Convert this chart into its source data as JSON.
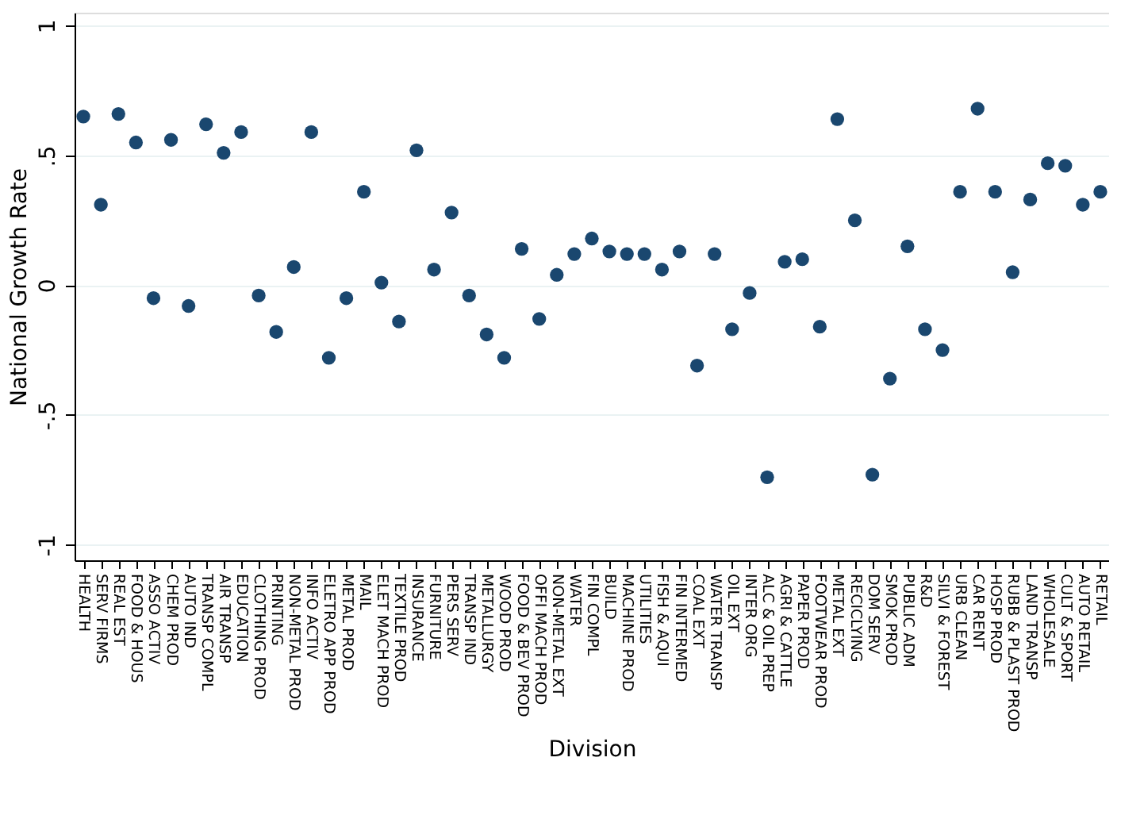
{
  "chart_data": {
    "type": "scatter",
    "xlabel": "Division",
    "ylabel": "National Growth Rate",
    "categories": [
      "HEALTH",
      "SERV FIRMS",
      "REAL EST",
      "FOOD & HOUS",
      "ASSO ACTIV",
      "CHEM PROD",
      "AUTO IND",
      "TRANSP COMPL",
      "AIR TRANSP",
      "EDUCATION",
      "CLOTHING PROD",
      "PRINTING",
      "NON-METAL PROD",
      "INFO ACTIV",
      "ELETRO APP PROD",
      "METAL PROD",
      "MAIL",
      "ELET MACH PROD",
      "TEXTILE PROD",
      "INSURANCE",
      "FURNITURE",
      "PERS SERV",
      "TRANSP IND",
      "METALLURGY",
      "WOOD PROD",
      "FOOD & BEV PROD",
      "OFFI MACH PROD",
      "NON-METAL EXT",
      "WATER",
      "FIN COMPL",
      "BUILD",
      "MACHINE PROD",
      "UTILITIES",
      "FISH & AQUI",
      "FIN INTERMED",
      "COAL EXT",
      "WATER TRANSP",
      "OIL EXT",
      "INTER ORG",
      "ALC & OIL PREP",
      "AGRI & CATTLE",
      "PAPER PROD",
      "FOOTWEAR PROD",
      "METAL EXT",
      "RECICLYING",
      "DOM SERV",
      "SMOK PROD",
      "PUBLIC ADM",
      "R&D",
      "SILVI & FOREST",
      "URB CLEAN",
      "CAR RENT",
      "HOSP PROD",
      "RUBB & PLAST PROD",
      "LAND TRANSP",
      "WHOLESALE",
      "CULT & SPORT",
      "AUTO RETAIL",
      "RETAIL"
    ],
    "series": [
      {
        "color": "#1a476f",
        "values": [
          0.65,
          0.31,
          0.66,
          0.55,
          -0.05,
          0.56,
          -0.08,
          0.62,
          0.51,
          0.59,
          -0.04,
          -0.18,
          0.07,
          0.59,
          -0.28,
          -0.05,
          0.36,
          0.01,
          -0.14,
          0.52,
          0.06,
          0.28,
          -0.04,
          -0.19,
          -0.28,
          0.14,
          -0.13,
          0.04,
          0.12,
          0.18,
          0.13,
          0.12,
          0.12,
          0.06,
          0.13,
          -0.31,
          0.12,
          -0.17,
          -0.03,
          -0.74,
          0.09,
          0.1,
          -0.16,
          0.64,
          0.25,
          -0.73,
          -0.36,
          0.15,
          -0.17,
          -0.25,
          0.36,
          0.68,
          0.36,
          0.05,
          0.33,
          0.47,
          0.46,
          0.31,
          0.36
        ]
      }
    ],
    "ylim": [
      -1.06,
      1.05
    ],
    "yticks": [
      {
        "value": -1,
        "label": "-1"
      },
      {
        "value": -0.5,
        "label": "-.5"
      },
      0,
      {
        "value": 0.5,
        "label": ".5"
      },
      1
    ],
    "grid": "y",
    "marker": "circle",
    "legend": false
  }
}
